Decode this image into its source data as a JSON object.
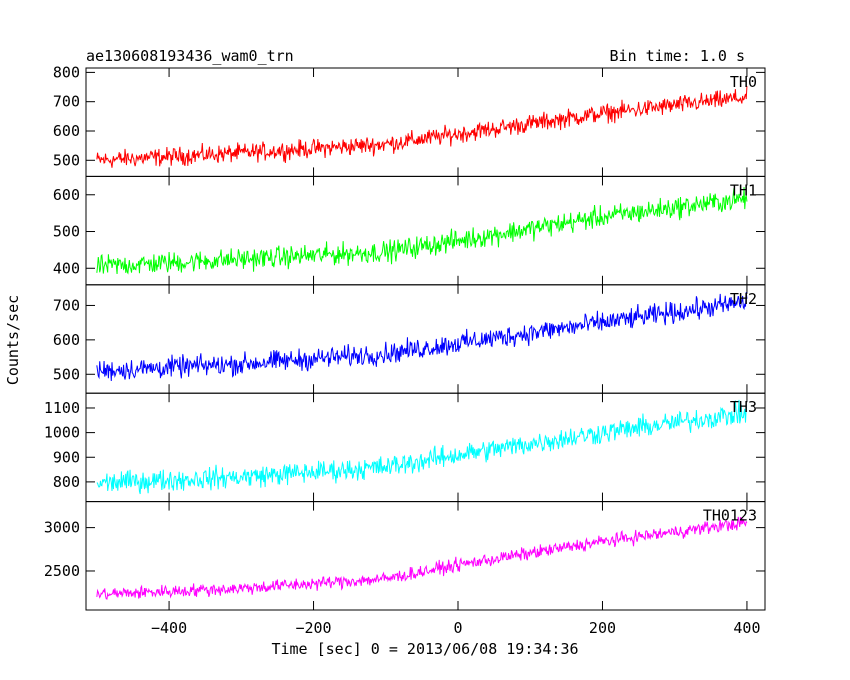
{
  "chart_data": {
    "type": "line",
    "title": "ae130608193436_wam0_trn",
    "subtitle": "Bin time: 1.0 s",
    "xlabel": "Time [sec] 0 = 2013/06/08 19:34:36",
    "ylabel": "Counts/sec",
    "xlim": [
      -515,
      425
    ],
    "x_ticks": [
      -400,
      -200,
      0,
      200,
      400
    ],
    "x_data_range": [
      -500,
      400
    ],
    "bin_time_s": 1.0,
    "panels": [
      {
        "name": "TH0",
        "color": "#ff0000",
        "ylim": [
          445,
          815
        ],
        "y_ticks": [
          500,
          600,
          700,
          800
        ],
        "trend": [
          {
            "x": -500,
            "y": 500
          },
          {
            "x": -300,
            "y": 525
          },
          {
            "x": -100,
            "y": 555
          },
          {
            "x": 0,
            "y": 590
          },
          {
            "x": 200,
            "y": 660
          },
          {
            "x": 400,
            "y": 715
          }
        ],
        "noise_amplitude": 35
      },
      {
        "name": "TH1",
        "color": "#00ff00",
        "ylim": [
          355,
          650
        ],
        "y_ticks": [
          400,
          500,
          600
        ],
        "trend": [
          {
            "x": -500,
            "y": 405
          },
          {
            "x": -300,
            "y": 425
          },
          {
            "x": -100,
            "y": 445
          },
          {
            "x": 0,
            "y": 475
          },
          {
            "x": 200,
            "y": 540
          },
          {
            "x": 400,
            "y": 590
          }
        ],
        "noise_amplitude": 33
      },
      {
        "name": "TH2",
        "color": "#0000ff",
        "ylim": [
          445,
          760
        ],
        "y_ticks": [
          500,
          600,
          700
        ],
        "trend": [
          {
            "x": -500,
            "y": 510
          },
          {
            "x": -300,
            "y": 530
          },
          {
            "x": -100,
            "y": 560
          },
          {
            "x": 0,
            "y": 590
          },
          {
            "x": 200,
            "y": 650
          },
          {
            "x": 400,
            "y": 710
          }
        ],
        "noise_amplitude": 35
      },
      {
        "name": "TH3",
        "color": "#00ffff",
        "ylim": [
          720,
          1160
        ],
        "y_ticks": [
          800,
          900,
          1000,
          1100
        ],
        "trend": [
          {
            "x": -500,
            "y": 795
          },
          {
            "x": -300,
            "y": 820
          },
          {
            "x": -100,
            "y": 860
          },
          {
            "x": 0,
            "y": 910
          },
          {
            "x": 200,
            "y": 1000
          },
          {
            "x": 400,
            "y": 1080
          }
        ],
        "noise_amplitude": 50
      },
      {
        "name": "TH0123",
        "color": "#ff00ff",
        "ylim": [
          2050,
          3300
        ],
        "y_ticks": [
          2500,
          3000
        ],
        "trend": [
          {
            "x": -500,
            "y": 2230
          },
          {
            "x": -300,
            "y": 2300
          },
          {
            "x": -100,
            "y": 2410
          },
          {
            "x": 0,
            "y": 2570
          },
          {
            "x": 200,
            "y": 2840
          },
          {
            "x": 400,
            "y": 3060
          }
        ],
        "noise_amplitude": 85
      }
    ]
  }
}
